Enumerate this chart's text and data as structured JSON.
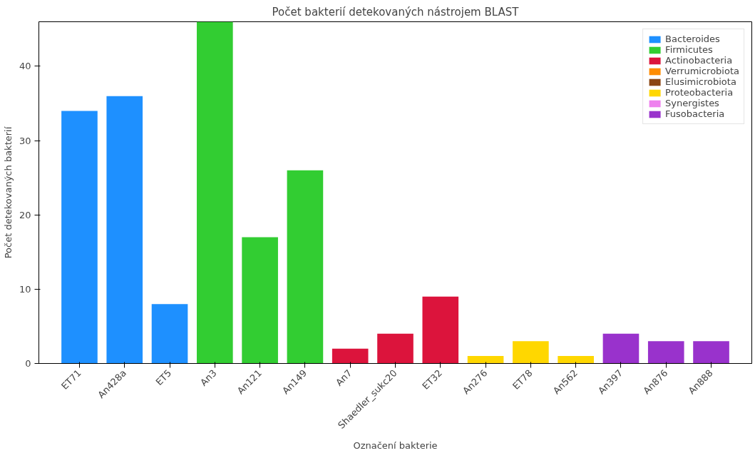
{
  "chart_data": {
    "type": "bar",
    "title": "Počet bakterií detekovaných nástrojem BLAST",
    "xlabel": "Označení bakterie",
    "ylabel": "Počet detekovaných bakterií",
    "categories": [
      "ET71",
      "An428a",
      "ET5",
      "An3",
      "An121",
      "An149",
      "An7",
      "Shaedler_sukc20",
      "ET32",
      "An276",
      "ET78",
      "An562",
      "An397",
      "An876",
      "An888"
    ],
    "series": [
      {
        "name": "Bacteroides",
        "color": "#1e90ff",
        "values": [
          34,
          36,
          8,
          null,
          null,
          null,
          null,
          null,
          null,
          null,
          null,
          null,
          null,
          null,
          null
        ]
      },
      {
        "name": "Firmicutes",
        "color": "#32cd32",
        "values": [
          null,
          null,
          null,
          46,
          17,
          26,
          null,
          null,
          null,
          null,
          null,
          null,
          null,
          null,
          null
        ]
      },
      {
        "name": "Actinobacteria",
        "color": "#dc143c",
        "values": [
          null,
          null,
          null,
          null,
          null,
          null,
          2,
          4,
          9,
          null,
          null,
          null,
          null,
          null,
          null
        ]
      },
      {
        "name": "Verrumicrobiota",
        "color": "#ff8c00",
        "values": [
          null,
          null,
          null,
          null,
          null,
          null,
          null,
          null,
          null,
          null,
          null,
          null,
          null,
          null,
          null
        ]
      },
      {
        "name": "Elusimicrobiota",
        "color": "#8b4513",
        "values": [
          null,
          null,
          null,
          null,
          null,
          null,
          null,
          null,
          null,
          null,
          null,
          null,
          null,
          null,
          null
        ]
      },
      {
        "name": "Proteobacteria",
        "color": "#ffd700",
        "values": [
          null,
          null,
          null,
          null,
          null,
          null,
          null,
          null,
          null,
          1,
          3,
          1,
          null,
          null,
          null
        ]
      },
      {
        "name": "Synergistes",
        "color": "#ee82ee",
        "values": [
          null,
          null,
          null,
          null,
          null,
          null,
          null,
          null,
          null,
          null,
          null,
          null,
          null,
          null,
          null
        ]
      },
      {
        "name": "Fusobacteria",
        "color": "#9932cc",
        "values": [
          null,
          null,
          null,
          null,
          null,
          null,
          null,
          null,
          null,
          null,
          null,
          null,
          4,
          3,
          3
        ]
      }
    ],
    "ylim": [
      0,
      46
    ],
    "yticks": [
      0,
      10,
      20,
      30,
      40
    ],
    "grid": false,
    "legend": "top right"
  }
}
